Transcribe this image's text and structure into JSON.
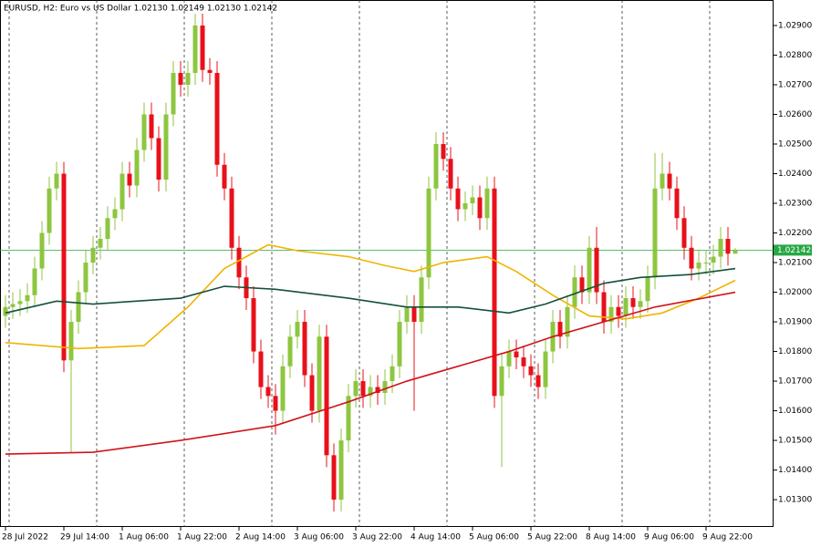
{
  "chart_data": {
    "type": "candlestick",
    "title": "EURUSD, H2:  Euro vs US Dollar  1.02130 1.02149 1.02130 1.02142",
    "categories": [
      "28 Jul 2022",
      null,
      null,
      null,
      null,
      null,
      null,
      null,
      "29 Jul 14:00",
      null,
      null,
      null,
      null,
      null,
      null,
      null,
      "1 Aug 06:00",
      null,
      null,
      null,
      null,
      null,
      null,
      null,
      "1 Aug 22:00",
      null,
      null,
      null,
      null,
      null,
      null,
      null,
      "2 Aug 14:00",
      null,
      null,
      null,
      null,
      null,
      null,
      null,
      "3 Aug 06:00",
      null,
      null,
      null,
      null,
      null,
      null,
      null,
      "3 Aug 22:00",
      null,
      null,
      null,
      null,
      null,
      null,
      null,
      "4 Aug 14:00",
      null,
      null,
      null,
      null,
      null,
      null,
      null,
      "5 Aug 06:00",
      null,
      null,
      null,
      null,
      null,
      null,
      null,
      "5 Aug 22:00",
      null,
      null,
      null,
      null,
      null,
      null,
      null,
      "8 Aug 14:00",
      null,
      null,
      null,
      null,
      null,
      null,
      null,
      "9 Aug 06:00",
      null,
      null,
      null,
      null,
      null,
      null,
      null,
      "9 Aug 22:00",
      null,
      null,
      null,
      null
    ],
    "open": [
      1.0192,
      1.0195,
      1.0196,
      1.0197,
      1.0199,
      1.0208,
      1.022,
      1.0235,
      1.024,
      1.0177,
      1.019,
      1.02,
      1.021,
      1.0215,
      1.0218,
      1.0225,
      1.0228,
      1.024,
      1.0236,
      1.0248,
      1.026,
      1.0252,
      1.0238,
      1.026,
      1.0274,
      1.027,
      1.0274,
      1.029,
      1.0275,
      1.0274,
      1.0243,
      1.0235,
      1.0215,
      1.0205,
      1.0198,
      1.018,
      1.0168,
      1.0165,
      1.016,
      1.0175,
      1.0185,
      1.019,
      1.0172,
      1.016,
      1.0185,
      1.0145,
      1.013,
      1.015,
      1.0165,
      1.017,
      1.0165,
      1.0168,
      1.0166,
      1.017,
      1.0175,
      1.019,
      1.0195,
      1.019,
      1.0205,
      1.0235,
      1.025,
      1.0245,
      1.0235,
      1.0228,
      1.023,
      1.0232,
      1.0225,
      1.0235,
      1.0165,
      1.0175,
      1.018,
      1.0178,
      1.0175,
      1.0172,
      1.0168,
      1.018,
      1.019,
      1.0185,
      1.0195,
      1.0205,
      1.02,
      1.0215,
      1.02,
      1.019,
      1.0195,
      1.0192,
      1.0198,
      1.0195,
      1.0197,
      1.0205,
      1.0235,
      1.024,
      1.0235,
      1.0225,
      1.0215,
      1.0208,
      1.021,
      1.021,
      1.0212,
      1.0218,
      1.0213
    ],
    "high": [
      1.0199,
      1.02,
      1.0201,
      1.0203,
      1.0212,
      1.0224,
      1.0239,
      1.0244,
      1.0244,
      1.0194,
      1.0204,
      1.0214,
      1.0219,
      1.0222,
      1.0229,
      1.0232,
      1.0244,
      1.0244,
      1.0252,
      1.0264,
      1.0264,
      1.0256,
      1.0264,
      1.0278,
      1.0278,
      1.0278,
      1.0294,
      1.0294,
      1.0279,
      1.0278,
      1.0247,
      1.0239,
      1.0219,
      1.0209,
      1.0202,
      1.0184,
      1.0172,
      1.0169,
      1.0179,
      1.0189,
      1.0194,
      1.0194,
      1.0176,
      1.0189,
      1.0189,
      1.0149,
      1.0154,
      1.0169,
      1.0174,
      1.0174,
      1.0172,
      1.0172,
      1.0174,
      1.0179,
      1.0194,
      1.0199,
      1.0199,
      1.0209,
      1.0239,
      1.0254,
      1.0254,
      1.0249,
      1.0239,
      1.0234,
      1.0236,
      1.0236,
      1.0239,
      1.0239,
      1.0179,
      1.0184,
      1.0184,
      1.0182,
      1.0179,
      1.0176,
      1.0184,
      1.0194,
      1.0194,
      1.0199,
      1.0209,
      1.0209,
      1.0219,
      1.0222,
      1.0204,
      1.0199,
      1.0199,
      1.0202,
      1.0202,
      1.0201,
      1.0209,
      1.0247,
      1.0247,
      1.0244,
      1.0239,
      1.0229,
      1.0219,
      1.0214,
      1.0214,
      1.0216,
      1.0222,
      1.0222,
      1.02149
    ],
    "low": [
      1.0188,
      1.0191,
      1.0192,
      1.0193,
      1.0195,
      1.0204,
      1.0216,
      1.0231,
      1.0173,
      1.0146,
      1.0186,
      1.0196,
      1.0206,
      1.0211,
      1.0214,
      1.0221,
      1.0224,
      1.0232,
      1.0232,
      1.0244,
      1.0248,
      1.0234,
      1.0234,
      1.0256,
      1.0266,
      1.0266,
      1.027,
      1.0271,
      1.027,
      1.0239,
      1.0231,
      1.0211,
      1.0201,
      1.0194,
      1.0176,
      1.0164,
      1.0161,
      1.0152,
      1.0156,
      1.0171,
      1.0181,
      1.0168,
      1.0156,
      1.0156,
      1.0141,
      1.0126,
      1.0126,
      1.0146,
      1.0161,
      1.0161,
      1.0161,
      1.0162,
      1.0162,
      1.0166,
      1.0171,
      1.0186,
      1.016,
      1.0186,
      1.0201,
      1.0231,
      1.0241,
      1.0231,
      1.0224,
      1.0224,
      1.0226,
      1.0221,
      1.0221,
      1.0161,
      1.0141,
      1.0171,
      1.0174,
      1.0171,
      1.0168,
      1.0164,
      1.0164,
      1.0176,
      1.0181,
      1.0181,
      1.0191,
      1.0196,
      1.0196,
      1.0196,
      1.0186,
      1.0186,
      1.0188,
      1.0188,
      1.0191,
      1.0191,
      1.0193,
      1.0201,
      1.0231,
      1.0231,
      1.0221,
      1.0211,
      1.0204,
      1.0204,
      1.0206,
      1.0206,
      1.0208,
      1.0209,
      1.0213
    ],
    "close": [
      1.0195,
      1.0196,
      1.0197,
      1.0199,
      1.0208,
      1.022,
      1.0235,
      1.024,
      1.0177,
      1.019,
      1.02,
      1.021,
      1.0215,
      1.0218,
      1.0225,
      1.0228,
      1.024,
      1.0236,
      1.0248,
      1.026,
      1.0252,
      1.0238,
      1.026,
      1.0274,
      1.027,
      1.0274,
      1.029,
      1.0275,
      1.0274,
      1.0243,
      1.0235,
      1.0215,
      1.0205,
      1.0198,
      1.018,
      1.0168,
      1.0165,
      1.016,
      1.0175,
      1.0185,
      1.019,
      1.0172,
      1.016,
      1.0185,
      1.0145,
      1.013,
      1.015,
      1.0165,
      1.017,
      1.0165,
      1.0168,
      1.0166,
      1.017,
      1.0175,
      1.019,
      1.0195,
      1.019,
      1.0205,
      1.0235,
      1.025,
      1.0245,
      1.0235,
      1.0228,
      1.023,
      1.0232,
      1.0225,
      1.0235,
      1.0165,
      1.0175,
      1.018,
      1.0178,
      1.0175,
      1.0172,
      1.0168,
      1.018,
      1.019,
      1.0185,
      1.0195,
      1.0205,
      1.02,
      1.0215,
      1.02,
      1.019,
      1.0195,
      1.0192,
      1.0198,
      1.0195,
      1.0197,
      1.0205,
      1.0235,
      1.024,
      1.0235,
      1.0225,
      1.0215,
      1.0208,
      1.021,
      1.021,
      1.0212,
      1.0218,
      1.0213,
      1.02142
    ],
    "up_color": "#8dc63f",
    "down_color": "#e8101a",
    "lines": [
      {
        "color": "#f0b400",
        "x": [
          0,
          10,
          19,
          25,
          30,
          36,
          40,
          47,
          52,
          56,
          60,
          66,
          70,
          75,
          80,
          85,
          90,
          95,
          100
        ],
        "values": [
          1.0183,
          1.0181,
          1.0182,
          1.0195,
          1.0208,
          1.0216,
          1.0214,
          1.0212,
          1.0209,
          1.0207,
          1.021,
          1.0212,
          1.0207,
          1.0199,
          1.0192,
          1.0191,
          1.0193,
          1.0198,
          1.0204
        ]
      },
      {
        "color": "#16503a",
        "x": [
          0,
          7,
          12,
          24,
          30,
          37,
          47,
          55,
          62,
          69,
          74,
          82,
          87,
          94,
          100
        ],
        "values": [
          1.0193,
          1.0197,
          1.0196,
          1.0198,
          1.0202,
          1.0201,
          1.0198,
          1.0195,
          1.0195,
          1.0193,
          1.0196,
          1.0203,
          1.0205,
          1.0206,
          1.0208
        ]
      },
      {
        "color": "#d0131b",
        "x": [
          0,
          12,
          24,
          37,
          47,
          55,
          62,
          69,
          75,
          82,
          89,
          100
        ],
        "values": [
          1.01454,
          1.0146,
          1.015,
          1.0155,
          1.0163,
          1.017,
          1.0175,
          1.018,
          1.0185,
          1.019,
          1.0195,
          1.02
        ]
      }
    ],
    "last_price": {
      "value": 1.02142,
      "label": "1.02142"
    },
    "last_price_color": "#27a745",
    "ylim": [
      1.01208,
      1.02986
    ],
    "yticks": [
      {
        "value": 1.029,
        "label": "1.02900"
      },
      {
        "value": 1.028,
        "label": "1.02800"
      },
      {
        "value": 1.027,
        "label": "1.02700"
      },
      {
        "value": 1.026,
        "label": "1.02600"
      },
      {
        "value": 1.025,
        "label": "1.02500"
      },
      {
        "value": 1.024,
        "label": "1.02400"
      },
      {
        "value": 1.023,
        "label": "1.02300"
      },
      {
        "value": 1.022,
        "label": "1.02200"
      },
      {
        "value": 1.021,
        "label": "1.02100"
      },
      {
        "value": 1.02,
        "label": "1.02000"
      },
      {
        "value": 1.019,
        "label": "1.01900"
      },
      {
        "value": 1.018,
        "label": "1.01800"
      },
      {
        "value": 1.017,
        "label": "1.01700"
      },
      {
        "value": 1.016,
        "label": "1.01600"
      },
      {
        "value": 1.015,
        "label": "1.01500"
      },
      {
        "value": 1.014,
        "label": "1.01400"
      },
      {
        "value": 1.013,
        "label": "1.01300"
      }
    ]
  }
}
